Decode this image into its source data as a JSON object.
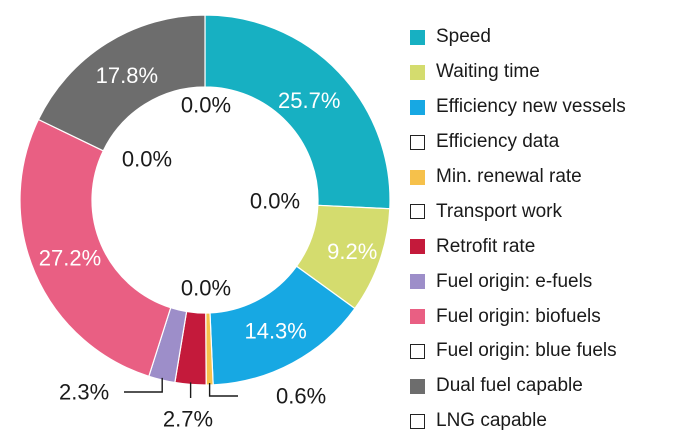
{
  "chart_data": {
    "type": "pie",
    "variant": "donut",
    "slices": [
      {
        "label": "Speed",
        "value": 25.7,
        "display": "25.7%",
        "color": "#17b0c2"
      },
      {
        "label": "Waiting time",
        "value": 9.2,
        "display": "9.2%",
        "color": "#d4dc6e"
      },
      {
        "label": "Efficiency new vessels",
        "value": 14.3,
        "display": "14.3%",
        "color": "#17a8e3"
      },
      {
        "label": "Efficiency data",
        "value": 0.0,
        "display": "0.0%",
        "color": "#ffffff"
      },
      {
        "label": "Min. renewal rate",
        "value": 0.6,
        "display": "0.6%",
        "color": "#f6c14b"
      },
      {
        "label": "Transport work",
        "value": 0.0,
        "display": "0.0%",
        "color": "#ffffff"
      },
      {
        "label": "Retrofit rate",
        "value": 2.7,
        "display": "2.7%",
        "color": "#c41a3b"
      },
      {
        "label": "Fuel origin: e-fuels",
        "value": 2.3,
        "display": "2.3%",
        "color": "#9d8ec9"
      },
      {
        "label": "Fuel origin: biofuels",
        "value": 27.2,
        "display": "27.2%",
        "color": "#e95f83"
      },
      {
        "label": "Fuel origin: blue fuels",
        "value": 0.0,
        "display": "0.0%",
        "color": "#ffffff"
      },
      {
        "label": "Dual fuel capable",
        "value": 17.8,
        "display": "17.8%",
        "color": "#6d6d6d"
      },
      {
        "label": "LNG capable",
        "value": 0.0,
        "display": "0.0%",
        "color": "#ffffff"
      }
    ],
    "legend_position": "right"
  }
}
